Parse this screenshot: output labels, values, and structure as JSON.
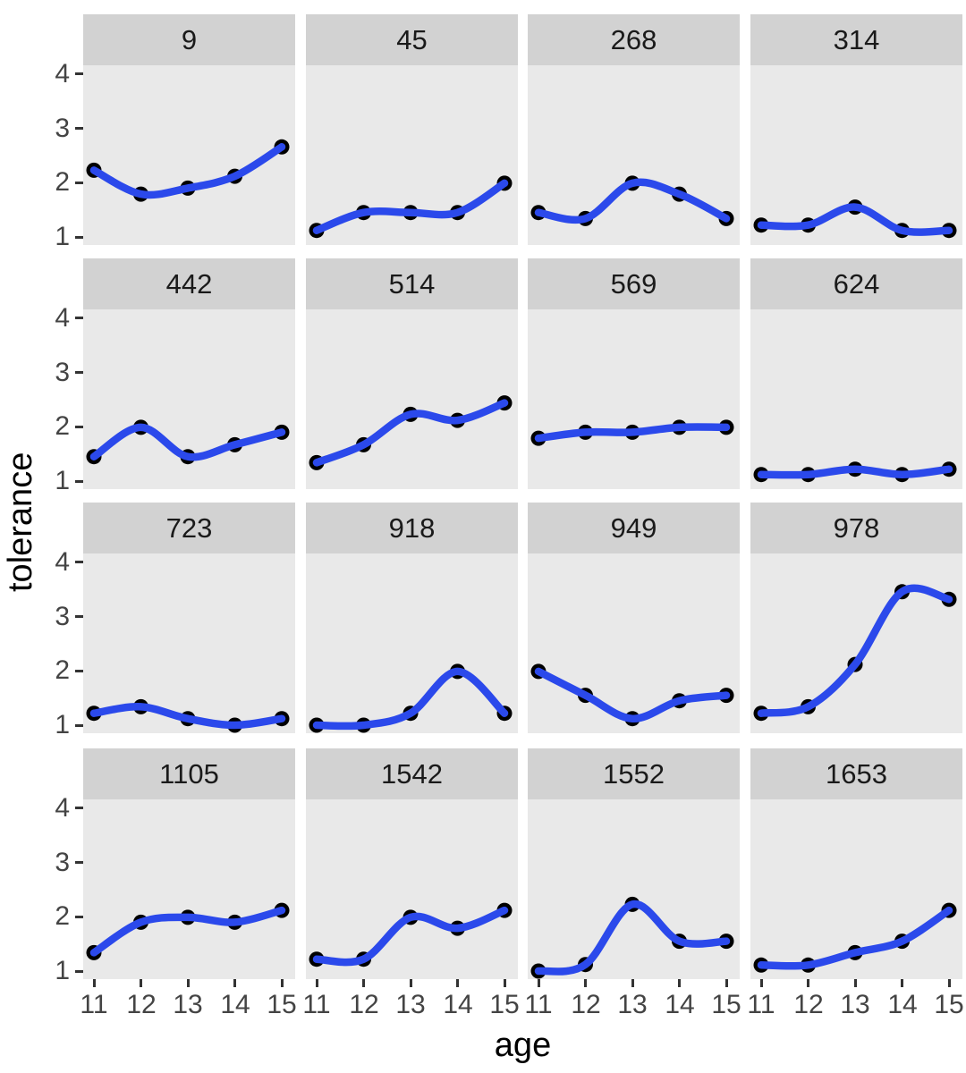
{
  "chart_data": {
    "type": "line",
    "title": "",
    "xlabel": "age",
    "ylabel": "tolerance",
    "x": [
      11,
      12,
      13,
      14,
      15
    ],
    "x_ticks": [
      "11",
      "12",
      "13",
      "14",
      "15"
    ],
    "y_ticks": [
      "1",
      "2",
      "3",
      "4"
    ],
    "xlim": [
      10.78,
      15.29
    ],
    "ylim": [
      0.85,
      4.18
    ],
    "grid": false,
    "legend": "none",
    "smoothing": "loess",
    "marker": "point",
    "facet_layout": {
      "rows": 4,
      "cols": 4
    },
    "facets": [
      {
        "id": "9",
        "values": [
          2.23,
          1.79,
          1.9,
          2.12,
          2.66
        ]
      },
      {
        "id": "45",
        "values": [
          1.12,
          1.45,
          1.45,
          1.45,
          1.99
        ]
      },
      {
        "id": "268",
        "values": [
          1.45,
          1.34,
          1.99,
          1.79,
          1.34
        ]
      },
      {
        "id": "314",
        "values": [
          1.22,
          1.22,
          1.55,
          1.12,
          1.12
        ]
      },
      {
        "id": "442",
        "values": [
          1.45,
          1.99,
          1.45,
          1.67,
          1.9
        ]
      },
      {
        "id": "514",
        "values": [
          1.34,
          1.67,
          2.23,
          2.12,
          2.44
        ]
      },
      {
        "id": "569",
        "values": [
          1.79,
          1.9,
          1.9,
          1.99,
          1.99
        ]
      },
      {
        "id": "624",
        "values": [
          1.12,
          1.12,
          1.22,
          1.12,
          1.22
        ]
      },
      {
        "id": "723",
        "values": [
          1.22,
          1.34,
          1.12,
          1.0,
          1.12
        ]
      },
      {
        "id": "918",
        "values": [
          1.0,
          1.0,
          1.22,
          1.99,
          1.22
        ]
      },
      {
        "id": "949",
        "values": [
          1.99,
          1.55,
          1.12,
          1.45,
          1.55
        ]
      },
      {
        "id": "978",
        "values": [
          1.22,
          1.34,
          2.12,
          3.46,
          3.32
        ]
      },
      {
        "id": "1105",
        "values": [
          1.34,
          1.9,
          1.99,
          1.9,
          2.12
        ]
      },
      {
        "id": "1542",
        "values": [
          1.22,
          1.22,
          1.99,
          1.79,
          2.12
        ]
      },
      {
        "id": "1552",
        "values": [
          1.0,
          1.12,
          2.23,
          1.55,
          1.55
        ]
      },
      {
        "id": "1653",
        "values": [
          1.11,
          1.11,
          1.34,
          1.55,
          2.12
        ]
      }
    ],
    "colors": {
      "line": "#2B49EB",
      "point": "#000000",
      "panel_bg": "#E9E9E9",
      "strip_bg": "#D2D2D2",
      "strip_text": "#1A1A1A",
      "tick_label": "#444444",
      "tick_mark": "#333333",
      "axis_title": "#000000",
      "background": "#FFFFFF"
    }
  }
}
